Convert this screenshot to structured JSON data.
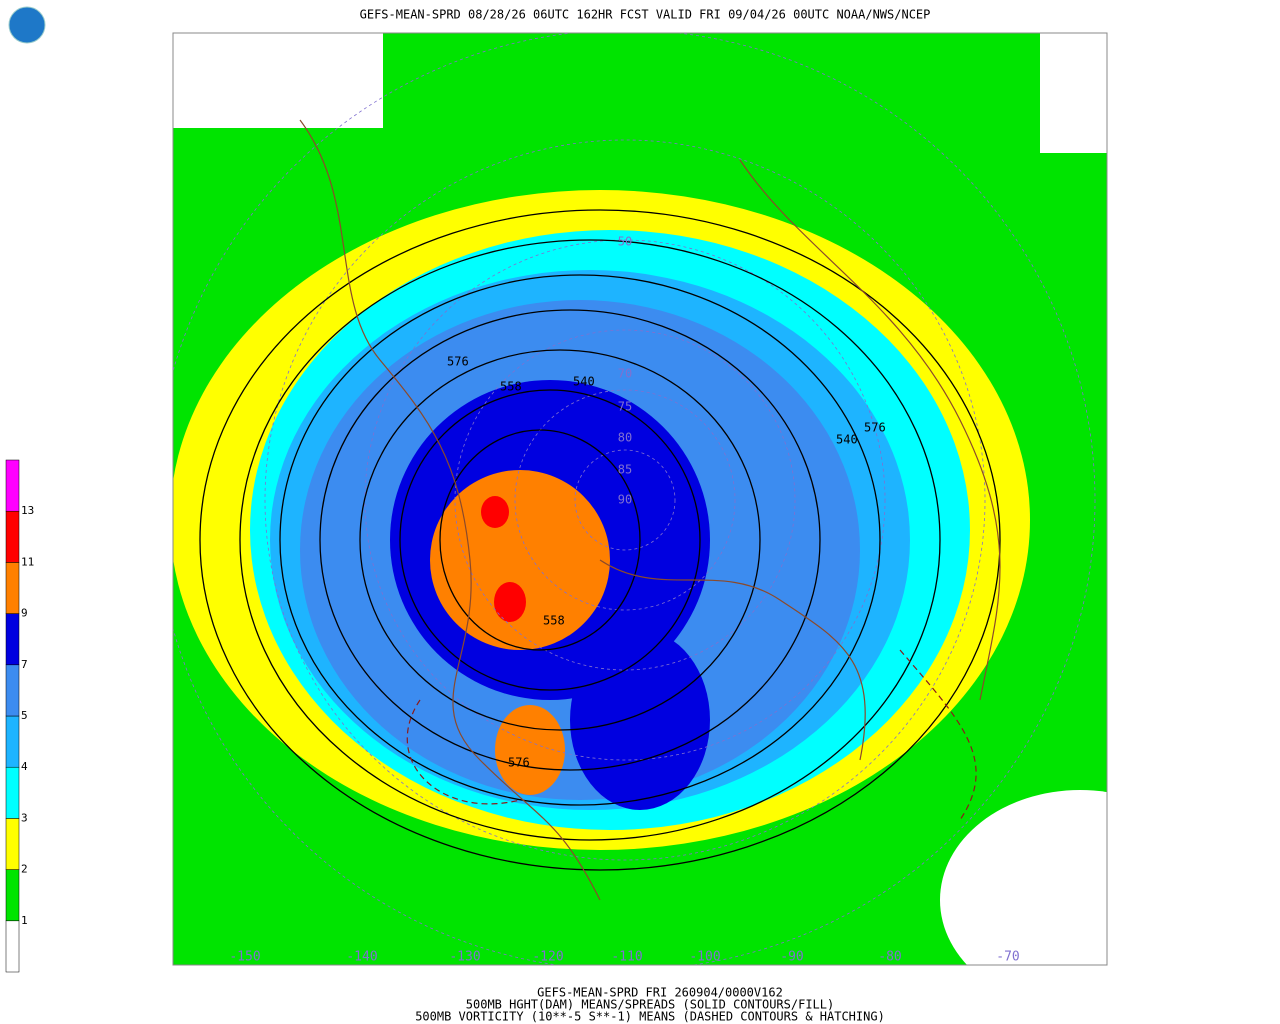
{
  "header": {
    "title": "GEFS-MEAN-SPRD 08/28/26 06UTC 162HR FCST VALID FRI 09/04/26 00UTC NOAA/NWS/NCEP"
  },
  "colorbar": {
    "levels": [
      1,
      2,
      3,
      4,
      5,
      7,
      9,
      11,
      13
    ],
    "colors": [
      "#ffffff",
      "#00e400",
      "#ffff00",
      "#00ffff",
      "#1eb4ff",
      "#3c8cf0",
      "#0000e0",
      "#ff8000",
      "#ff0000",
      "#ff00ff"
    ]
  },
  "map": {
    "contour_labels": [
      "576",
      "558",
      "540",
      "558",
      "576",
      "540",
      "576"
    ],
    "latitude_labels": [
      "90",
      "85",
      "80",
      "75",
      "70",
      "50"
    ],
    "longitude_labels": [
      "-150",
      "-140",
      "-130",
      "-120",
      "-110",
      "-100",
      "-90",
      "-80",
      "-70"
    ]
  },
  "footer": {
    "lines": [
      "GEFS-MEAN-SPRD FRI 260904/0000V162",
      "500MB HGHT(DAM) MEANS/SPREADS (SOLID CONTOURS/FILL)",
      "500MB VORTICITY (10**-5 S**-1) MEANS (DASHED CONTOURS & HATCHING)"
    ]
  }
}
